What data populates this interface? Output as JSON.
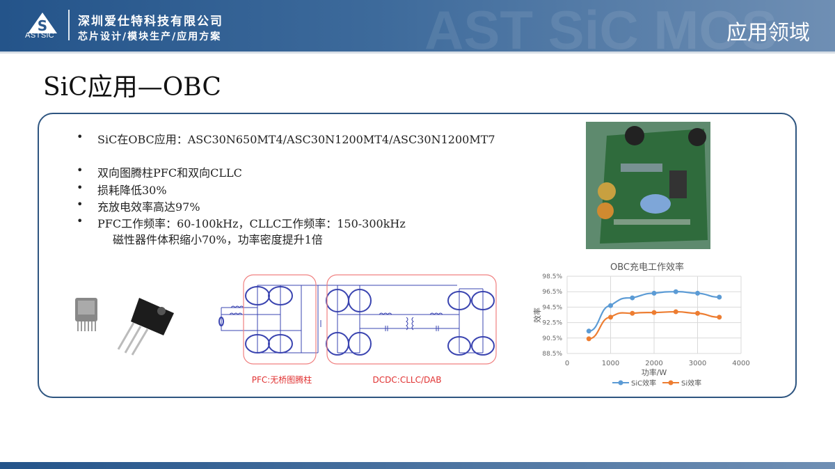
{
  "header": {
    "logo_text": "ASTSiC",
    "company": "深圳爱仕特科技有限公司",
    "tagline": "芯片设计/模块生产/应用方案",
    "watermark": "AST SiC MOS",
    "section": "应用领域"
  },
  "page_title": "SiC应用—OBC",
  "bullets": [
    {
      "text": "SiC在OBC应用：ASC30N650MT4/ASC30N1200MT4/ASC30N1200MT7",
      "bullet": "•"
    },
    {
      "text": "双向图腾柱PFC和双向CLLC",
      "bullet": "•"
    },
    {
      "text": "损耗降低30%",
      "bullet": "•"
    },
    {
      "text": "充放电效率高达97%",
      "bullet": "•"
    },
    {
      "text": "PFC工作频率：60-100kHz，CLLC工作频率：150-300kHz",
      "bullet": "•"
    },
    {
      "text": "磁性器件体积缩小70%，功率密度提升1倍",
      "bullet": ""
    }
  ],
  "circuit": {
    "pfc_label": "PFC:无桥图腾柱",
    "dcdc_label": "DCDC:CLLC/DAB",
    "box_color": "#f08080",
    "wire_color": "#3a44b0"
  },
  "chart_data": {
    "type": "line",
    "title": "OBC充电工作效率",
    "xlabel": "功率/W",
    "ylabel": "效率",
    "xlim": [
      0,
      4000
    ],
    "ylim": [
      88.5,
      98.5
    ],
    "xticks": [
      "0",
      "1000",
      "2000",
      "3000",
      "4000"
    ],
    "yticks": [
      "98.5%",
      "96.5%",
      "94.5%",
      "92.5%",
      "90.5%",
      "88.5%"
    ],
    "grid": true,
    "legend": "bottom",
    "x": [
      500,
      1000,
      1500,
      2000,
      2500,
      3000,
      3500
    ],
    "series": [
      {
        "name": "SiC效率",
        "color": "#5b9bd5",
        "values": [
          91.4,
          94.7,
          95.7,
          96.3,
          96.5,
          96.3,
          95.8
        ]
      },
      {
        "name": "Si效率",
        "color": "#ed7d31",
        "values": [
          90.4,
          93.2,
          93.7,
          93.8,
          93.9,
          93.7,
          93.2
        ]
      }
    ]
  }
}
